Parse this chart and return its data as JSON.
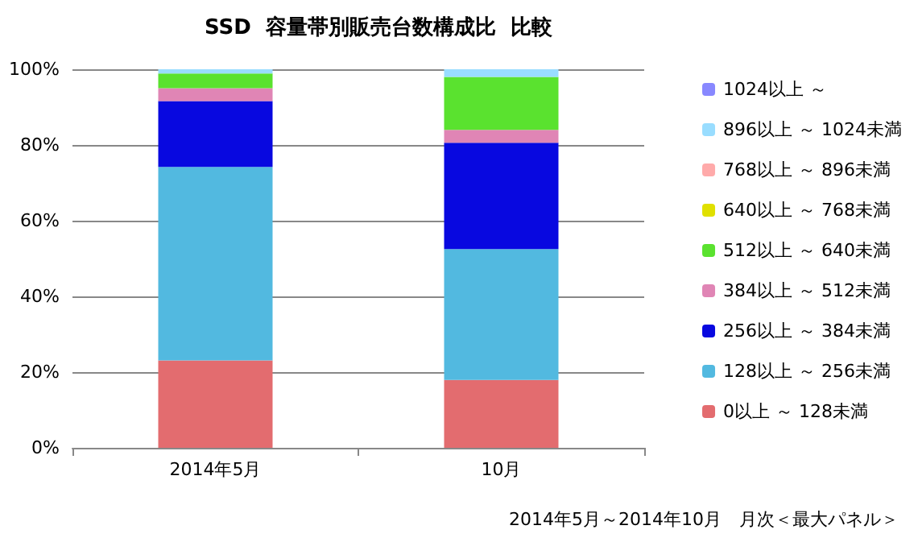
{
  "chart_data": {
    "type": "bar",
    "title": "SSD  容量帯別販売台数構成比  比較",
    "stacked": true,
    "categories": [
      "2014年5月",
      "10月"
    ],
    "series": [
      {
        "name": "0以上 ～ 128未満",
        "color": "#e36c6f",
        "values": [
          23.1,
          17.9
        ]
      },
      {
        "name": "128以上 ～ 256未満",
        "color": "#52b9e0",
        "values": [
          51.1,
          34.6
        ]
      },
      {
        "name": "256以上 ～ 384未満",
        "color": "#0808e0",
        "values": [
          17.4,
          28.1
        ]
      },
      {
        "name": "384以上 ～ 512未満",
        "color": "#e085b5",
        "values": [
          3.4,
          3.4
        ]
      },
      {
        "name": "512以上 ～ 640未満",
        "color": "#5ae22f",
        "values": [
          3.9,
          14.0
        ]
      },
      {
        "name": "640以上 ～ 768未満",
        "color": "#e0e000",
        "values": [
          0,
          0
        ]
      },
      {
        "name": "768以上 ～ 896未満",
        "color": "#ffaaaa",
        "values": [
          0,
          0
        ]
      },
      {
        "name": "896以上 ～ 1024未満",
        "color": "#99ddff",
        "values": [
          1.1,
          2.0
        ]
      },
      {
        "name": "1024以上 ～",
        "color": "#8888ff",
        "values": [
          0,
          0
        ]
      }
    ],
    "ylim": [
      0,
      100
    ],
    "yticks": [
      {
        "value": 0,
        "label": "0%"
      },
      {
        "value": 20,
        "label": "20%"
      },
      {
        "value": 40,
        "label": "40%"
      },
      {
        "value": 60,
        "label": "60%"
      },
      {
        "value": 80,
        "label": "80%"
      },
      {
        "value": 100,
        "label": "100%"
      }
    ],
    "grid": "y",
    "legend": "right",
    "annotations": [
      "2014年5月～2014年10月　月次＜最大パネル＞"
    ]
  }
}
